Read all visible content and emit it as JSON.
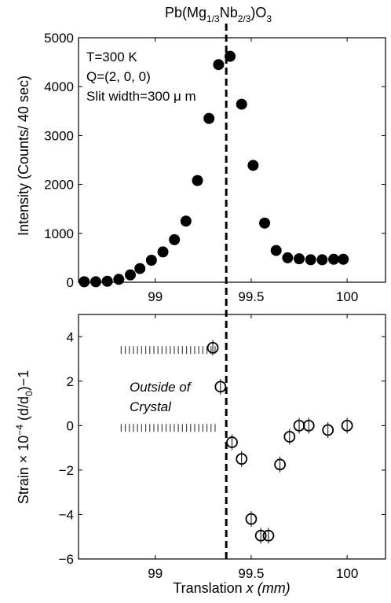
{
  "chart_data": [
    {
      "type": "scatter",
      "title": "Pb(Mg",
      "title_parts": {
        "sub1": "1/3",
        "mid": "Nb",
        "sub2": "2/3",
        "end": ")O",
        "sub3": "3"
      },
      "xlabel": "",
      "ylabel": "Intensity (Counts/ 40 sec)",
      "xlim": [
        98.6,
        100.2
      ],
      "ylim": [
        0,
        5000
      ],
      "xticks": [
        "99",
        "99.5",
        "100"
      ],
      "yticks": [
        "0",
        "1000",
        "2000",
        "3000",
        "4000",
        "5000"
      ],
      "annotations": [
        "T=300 K",
        "Q=(2, 0, 0)",
        "Slit width=300 μ m"
      ],
      "marker": "filled-circle",
      "series": [
        {
          "x": [
            98.63,
            98.69,
            98.75,
            98.81,
            98.87,
            98.92,
            98.98,
            99.04,
            99.1,
            99.16,
            99.22,
            99.28,
            99.33,
            99.39,
            99.45,
            99.51,
            99.57,
            99.63,
            99.69,
            99.75,
            99.81,
            99.87,
            99.93,
            99.98
          ],
          "y": [
            10,
            10,
            20,
            60,
            150,
            280,
            450,
            620,
            870,
            1250,
            2080,
            3350,
            4450,
            4620,
            3640,
            2390,
            1210,
            650,
            500,
            480,
            460,
            460,
            470,
            470
          ]
        }
      ]
    },
    {
      "type": "scatter",
      "xlabel": "Translation",
      "xlabel_italic": "x (mm)",
      "ylabel": "Strain × 10",
      "ylabel_exp": "−4",
      "ylabel_end": " (d/d",
      "ylabel_sub": "0",
      "ylabel_tail": ")−1",
      "xlim": [
        98.6,
        100.2
      ],
      "ylim": [
        -6,
        5
      ],
      "xticks": [
        "99",
        "99.5",
        "100"
      ],
      "yticks": [
        "−6",
        "−4",
        "−2",
        "0",
        "2",
        "4"
      ],
      "annotations": [
        "Outside of",
        "Crystal"
      ],
      "marker": "open-circle",
      "series": [
        {
          "x": [
            99.3,
            99.34,
            99.4,
            99.45,
            99.5,
            99.55,
            99.59,
            99.65,
            99.7,
            99.75,
            99.8,
            99.9,
            100.0
          ],
          "y": [
            3.5,
            1.75,
            -0.75,
            -1.5,
            -4.2,
            -4.95,
            -4.95,
            -1.75,
            -0.5,
            0.0,
            0.0,
            -0.2,
            0.0
          ]
        }
      ],
      "reference_lines": {
        "values": [
          3.4,
          -0.1
        ],
        "x_range": [
          98.82,
          99.32
        ]
      }
    }
  ],
  "divider": {
    "x": 99.37
  }
}
